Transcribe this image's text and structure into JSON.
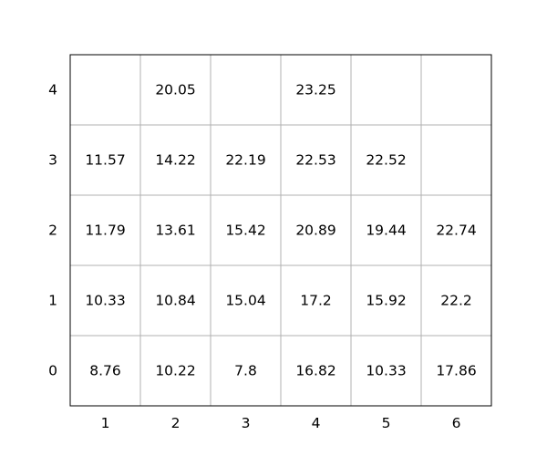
{
  "chart_data": {
    "type": "table",
    "title": "",
    "xlabel": "",
    "ylabel": "",
    "grid": true,
    "x_ticks": [
      "1",
      "2",
      "3",
      "4",
      "5",
      "6"
    ],
    "y_ticks": [
      "0",
      "1",
      "2",
      "3",
      "4"
    ],
    "rows": [
      {
        "y": "4",
        "values": [
          null,
          "20.05",
          null,
          "23.25",
          null,
          null
        ]
      },
      {
        "y": "3",
        "values": [
          "11.57",
          "14.22",
          "22.19",
          "22.53",
          "22.52",
          null
        ]
      },
      {
        "y": "2",
        "values": [
          "11.79",
          "13.61",
          "15.42",
          "20.89",
          "19.44",
          "22.74"
        ]
      },
      {
        "y": "1",
        "values": [
          "10.33",
          "10.84",
          "15.04",
          "17.2",
          "15.92",
          "22.2"
        ]
      },
      {
        "y": "0",
        "values": [
          "8.76",
          "10.22",
          "7.8",
          "16.82",
          "10.33",
          "17.86"
        ]
      }
    ],
    "colors": {
      "grid": "#b0b0b0",
      "frame": "#000000",
      "text": "#000000"
    }
  }
}
